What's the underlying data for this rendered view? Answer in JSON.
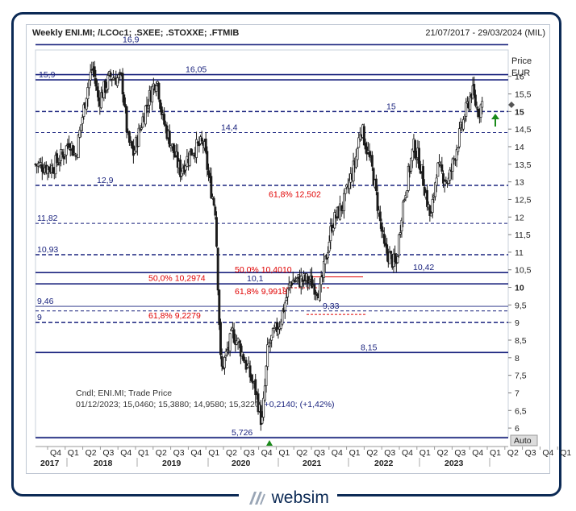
{
  "header": {
    "title": "Weekly ENI.MI; /LCOc1; .SXEE; .STOXXE; .FTMIB",
    "date_range": "21/07/2017 - 29/03/2024 (MIL)"
  },
  "logo": {
    "text": "websim"
  },
  "axis": {
    "price_label": "Price",
    "currency_label": "EUR",
    "auto_label": "Auto"
  },
  "info": {
    "line1": "Cndl; ENI.MI; Trade Price",
    "line2_black": "01/12/2023; 15,0460; 15,3880; 14,9580; 15,3220;",
    "line2_blue": " +0,2140; (+1,42%)"
  },
  "colors": {
    "level_line": "#1a237e",
    "candle": "#1a1a1a",
    "fib_text": "#e00000",
    "frame": "#0c2a55",
    "arrow": "#1a8a1a",
    "triangle": "#1a8a1a"
  },
  "chart_data": {
    "type": "candlestick",
    "title": "Weekly ENI.MI; /LCOc1; .SXEE; .STOXXE; .FTMIB",
    "date_range": "21/07/2017 - 29/03/2024 (MIL)",
    "y_axis": {
      "label": "Price EUR",
      "min": 5.75,
      "max": 16.75,
      "scale": "linear",
      "ticks": [
        "16",
        "15,5",
        "15",
        "14,5",
        "14",
        "13,5",
        "13",
        "12,5",
        "12",
        "11,5",
        "11",
        "10,5",
        "10",
        "9,5",
        "9",
        "8,5",
        "8",
        "7,5",
        "7",
        "6,5",
        "6"
      ],
      "tick_values": [
        16,
        15.5,
        15,
        14.5,
        14,
        13.5,
        13,
        12.5,
        12,
        11.5,
        11,
        10.5,
        10,
        9.5,
        9,
        8.5,
        8,
        7.5,
        7,
        6.5,
        6
      ]
    },
    "x_axis": {
      "quarters": [
        "Q4",
        "Q1",
        "Q2",
        "Q3",
        "Q4",
        "Q1",
        "Q2",
        "Q3",
        "Q4",
        "Q1",
        "Q2",
        "Q3",
        "Q4",
        "Q1",
        "Q2",
        "Q3",
        "Q4",
        "Q1",
        "Q2",
        "Q3",
        "Q4",
        "Q1",
        "Q2",
        "Q3",
        "Q4",
        "Q1",
        "Q2",
        "Q3",
        "Q4",
        "Q1"
      ],
      "years": [
        "2017",
        "2018",
        "2019",
        "2020",
        "2021",
        "2022",
        "2023"
      ]
    },
    "horizontal_levels": [
      {
        "label": "16,9",
        "value": 16.9,
        "style": "solid"
      },
      {
        "label": "16,05",
        "value": 16.05,
        "style": "solid"
      },
      {
        "label": "15,9",
        "value": 15.9,
        "style": "solid"
      },
      {
        "label": "15",
        "value": 15.0,
        "style": "dashed"
      },
      {
        "label": "14,4",
        "value": 14.4,
        "style": "thin-dashed"
      },
      {
        "label": "12,9",
        "value": 12.9,
        "style": "dashed"
      },
      {
        "label": "11,82",
        "value": 11.82,
        "style": "thin-dashed"
      },
      {
        "label": "10,93",
        "value": 10.93,
        "style": "dashed"
      },
      {
        "label": "10,42",
        "value": 10.42,
        "style": "solid"
      },
      {
        "label": "10,1",
        "value": 10.1,
        "style": "solid"
      },
      {
        "label": "9,46",
        "value": 9.46,
        "style": "thin"
      },
      {
        "label": "9,33",
        "value": 9.33,
        "style": "thin-dashed"
      },
      {
        "label": "9",
        "value": 9.0,
        "style": "dashed"
      },
      {
        "label": "8,15",
        "value": 8.15,
        "style": "solid"
      },
      {
        "label": "5,726",
        "value": 5.726,
        "style": "solid"
      }
    ],
    "fibonacci_labels": [
      {
        "text": "61,8% 12,502",
        "value": 12.502
      },
      {
        "text": "50,0%   10,2974",
        "value": 10.2974
      },
      {
        "text": "50,0% 10,4010",
        "value": 10.401
      },
      {
        "text": "61,8% 9,9918",
        "value": 9.9918
      },
      {
        "text": "61,8%   9,2279",
        "value": 9.2279
      }
    ],
    "weekly_close_points": [
      {
        "date": "2017-07",
        "close": 13.5
      },
      {
        "date": "2017-10",
        "close": 13.4
      },
      {
        "date": "2017-12",
        "close": 13.8
      },
      {
        "date": "2018-01",
        "close": 14.2
      },
      {
        "date": "2018-02",
        "close": 13.7
      },
      {
        "date": "2018-04",
        "close": 15.6
      },
      {
        "date": "2018-05",
        "close": 16.3
      },
      {
        "date": "2018-06",
        "close": 15.3
      },
      {
        "date": "2018-08",
        "close": 16.0
      },
      {
        "date": "2018-10",
        "close": 15.9
      },
      {
        "date": "2018-11",
        "close": 14.2
      },
      {
        "date": "2018-12",
        "close": 13.8
      },
      {
        "date": "2019-02",
        "close": 15.1
      },
      {
        "date": "2019-04",
        "close": 16.0
      },
      {
        "date": "2019-05",
        "close": 14.8
      },
      {
        "date": "2019-08",
        "close": 13.3
      },
      {
        "date": "2019-10",
        "close": 13.9
      },
      {
        "date": "2019-12",
        "close": 14.1
      },
      {
        "date": "2020-01",
        "close": 13.0
      },
      {
        "date": "2020-02",
        "close": 12.2
      },
      {
        "date": "2020-03",
        "close": 7.6
      },
      {
        "date": "2020-05",
        "close": 8.7
      },
      {
        "date": "2020-06",
        "close": 8.4
      },
      {
        "date": "2020-09",
        "close": 7.0
      },
      {
        "date": "2020-10",
        "close": 6.1
      },
      {
        "date": "2020-11",
        "close": 8.3
      },
      {
        "date": "2021-01",
        "close": 9.0
      },
      {
        "date": "2021-03",
        "close": 10.2
      },
      {
        "date": "2021-06",
        "close": 10.2
      },
      {
        "date": "2021-08",
        "close": 9.9
      },
      {
        "date": "2021-10",
        "close": 11.8
      },
      {
        "date": "2021-12",
        "close": 12.4
      },
      {
        "date": "2022-02",
        "close": 13.6
      },
      {
        "date": "2022-03",
        "close": 14.6
      },
      {
        "date": "2022-05",
        "close": 13.3
      },
      {
        "date": "2022-07",
        "close": 11.1
      },
      {
        "date": "2022-09",
        "close": 10.6
      },
      {
        "date": "2022-10",
        "close": 12.2
      },
      {
        "date": "2022-12",
        "close": 14.0
      },
      {
        "date": "2023-01",
        "close": 13.6
      },
      {
        "date": "2023-03",
        "close": 11.9
      },
      {
        "date": "2023-04",
        "close": 13.4
      },
      {
        "date": "2023-06",
        "close": 13.0
      },
      {
        "date": "2023-08",
        "close": 14.4
      },
      {
        "date": "2023-10",
        "close": 15.6
      },
      {
        "date": "2023-11",
        "close": 15.0
      },
      {
        "date": "2023-12",
        "close": 15.32
      }
    ],
    "last_candle": {
      "date": "01/12/2023",
      "open": 15.046,
      "high": 15.388,
      "low": 14.958,
      "close": 15.322,
      "change": 0.214,
      "change_pct": 1.42
    }
  }
}
